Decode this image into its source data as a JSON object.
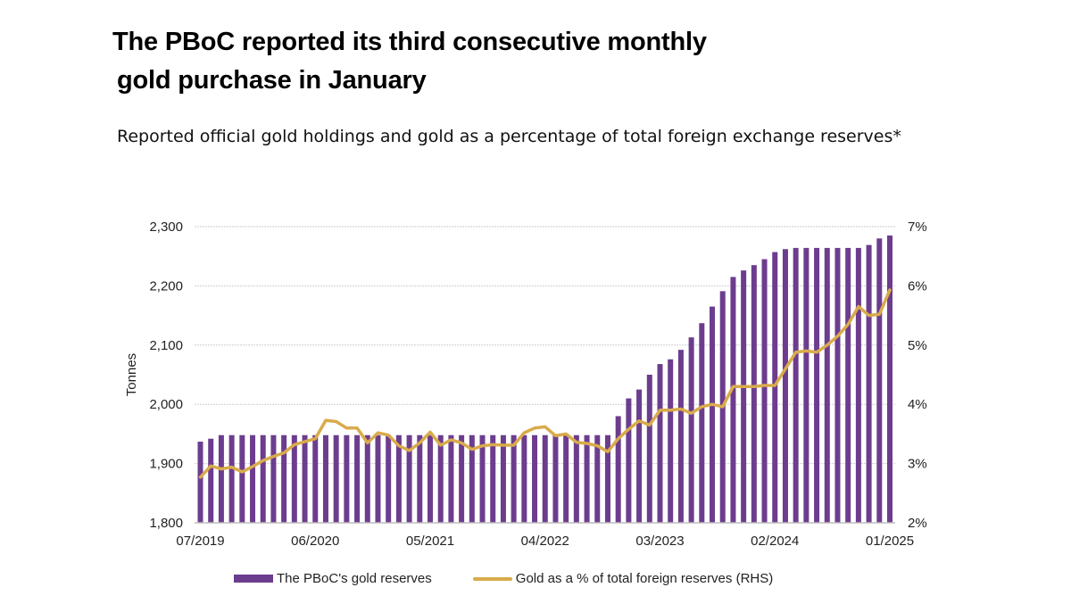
{
  "title_line1": "The PBoC reported its third consecutive monthly",
  "title_line2": "gold purchase in January",
  "subtitle": "Reported official gold holdings and gold as a percentage of total foreign exchange reserves*",
  "colors": {
    "bars": "#6c3d8e",
    "line": "#d9ab4b",
    "grid": "#cfcfcf"
  },
  "chart_data": {
    "type": "bar+line",
    "title": "The PBoC reported its third consecutive monthly gold purchase in January",
    "subtitle": "Reported official gold holdings and gold as a percentage of total foreign exchange reserves*",
    "ylabel": "Tonnes",
    "ylim": [
      1800,
      2300
    ],
    "yticks": [
      "1,800",
      "1,900",
      "2,000",
      "2,100",
      "2,200",
      "2,300"
    ],
    "y2lim": [
      2,
      7
    ],
    "y2ticks": [
      "2%",
      "3%",
      "4%",
      "5%",
      "6%",
      "7%"
    ],
    "xticks": [
      "07/2019",
      "06/2020",
      "05/2021",
      "04/2022",
      "03/2023",
      "02/2024",
      "01/2025"
    ],
    "x_start": "07/2019",
    "x_end": "01/2025",
    "xtick_every": 11,
    "grid": true,
    "legend_position": "bottom",
    "series": [
      {
        "name": "The PBoC's gold reserves",
        "type": "bar",
        "axis": "left",
        "values": [
          1937,
          1942,
          1948,
          1948,
          1948,
          1948,
          1948,
          1948,
          1948,
          1948,
          1948,
          1948,
          1948,
          1948,
          1948,
          1948,
          1948,
          1948,
          1948,
          1948,
          1948,
          1948,
          1948,
          1948,
          1948,
          1948,
          1948,
          1948,
          1948,
          1948,
          1948,
          1948,
          1948,
          1948,
          1948,
          1948,
          1948,
          1948,
          1948,
          1948,
          1980,
          2010,
          2025,
          2050,
          2068,
          2076,
          2092,
          2113,
          2137,
          2165,
          2191,
          2215,
          2226,
          2235,
          2245,
          2257,
          2262,
          2264,
          2264,
          2264,
          2264,
          2264,
          2264,
          2264,
          2269,
          2280,
          2285
        ]
      },
      {
        "name": "Gold as a % of total foreign reserves (RHS)",
        "type": "line",
        "axis": "right",
        "values": [
          2.77,
          2.96,
          2.91,
          2.94,
          2.86,
          2.95,
          3.05,
          3.12,
          3.18,
          3.32,
          3.37,
          3.42,
          3.73,
          3.71,
          3.6,
          3.6,
          3.35,
          3.52,
          3.48,
          3.3,
          3.22,
          3.35,
          3.53,
          3.31,
          3.4,
          3.35,
          3.24,
          3.3,
          3.32,
          3.31,
          3.31,
          3.52,
          3.6,
          3.62,
          3.47,
          3.5,
          3.36,
          3.34,
          3.3,
          3.2,
          3.42,
          3.58,
          3.72,
          3.65,
          3.9,
          3.9,
          3.92,
          3.85,
          3.96,
          4.0,
          3.96,
          4.3,
          4.3,
          4.3,
          4.32,
          4.32,
          4.6,
          4.88,
          4.9,
          4.88,
          5.0,
          5.15,
          5.35,
          5.65,
          5.5,
          5.52,
          5.93
        ]
      }
    ]
  },
  "legend": {
    "bars_label": "The PBoC's gold reserves",
    "line_label": "Gold as a % of total foreign reserves (RHS)"
  }
}
